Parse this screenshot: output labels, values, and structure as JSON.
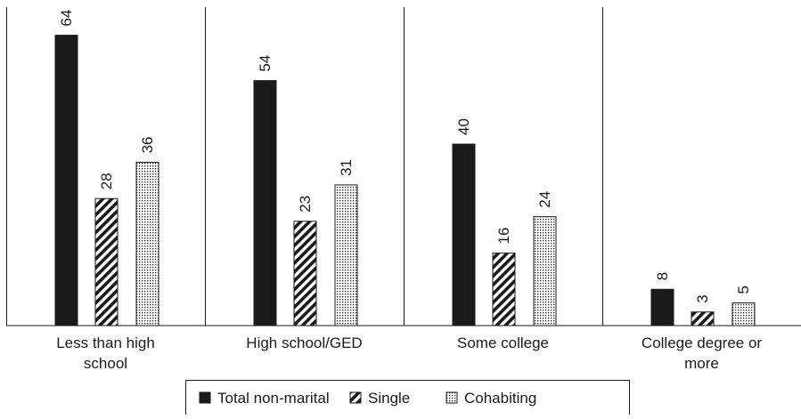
{
  "chart_data": {
    "type": "bar",
    "title": "",
    "xlabel": "",
    "ylabel": "",
    "ylim": [
      0,
      66
    ],
    "grid": false,
    "legend_position": "bottom",
    "categories": [
      [
        "Less than high",
        "school"
      ],
      [
        "High school/GED"
      ],
      [
        "Some college"
      ],
      [
        "College degree or",
        "more"
      ]
    ],
    "series": [
      {
        "name": "Total non-marital",
        "pattern": "solid",
        "color": "#1a1a1a",
        "values": [
          64,
          54,
          40,
          8
        ]
      },
      {
        "name": "Single",
        "pattern": "diagonal-stripes",
        "color": "#1a1a1a",
        "values": [
          28,
          23,
          16,
          3
        ]
      },
      {
        "name": "Cohabiting",
        "pattern": "dots",
        "color": "#1a1a1a",
        "values": [
          36,
          31,
          24,
          5
        ]
      }
    ]
  }
}
